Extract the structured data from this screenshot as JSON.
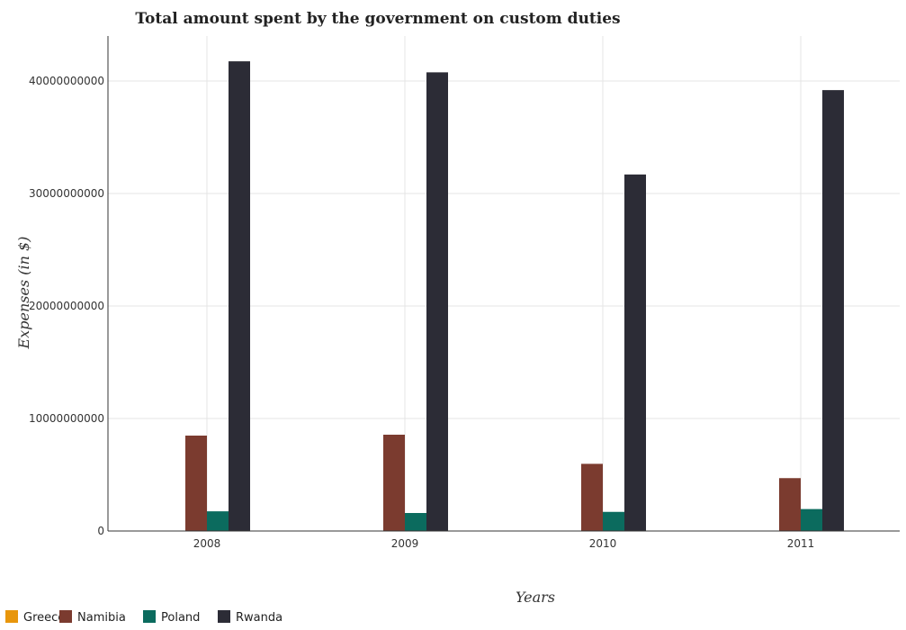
{
  "colors": {
    "Greece": "#e8960c",
    "Namibia": "#7b3b2f",
    "Poland": "#0b6b5e",
    "Rwanda": "#2c2c36"
  },
  "chart_data": {
    "type": "bar",
    "title": "Total amount spent by the government on custom duties",
    "xlabel": "Years",
    "ylabel": "Expenses (in $)",
    "categories": [
      "2008",
      "2009",
      "2010",
      "2011"
    ],
    "ylim": [
      0,
      44000000000
    ],
    "yticks": [
      0,
      10000000000,
      20000000000,
      30000000000,
      40000000000
    ],
    "ytick_labels": [
      "0",
      "10000000000",
      "20000000000",
      "30000000000",
      "40000000000"
    ],
    "grid": true,
    "legend_position": "bottom-left",
    "series": [
      {
        "name": "Greece",
        "values": [
          0,
          0,
          0,
          0
        ]
      },
      {
        "name": "Namibia",
        "values": [
          8480000000,
          8560000000,
          5970000000,
          4700000000
        ]
      },
      {
        "name": "Poland",
        "values": [
          1750000000,
          1600000000,
          1700000000,
          1950000000
        ]
      },
      {
        "name": "Rwanda",
        "values": [
          41750000000,
          40770000000,
          31690000000,
          39190000000
        ]
      }
    ]
  }
}
